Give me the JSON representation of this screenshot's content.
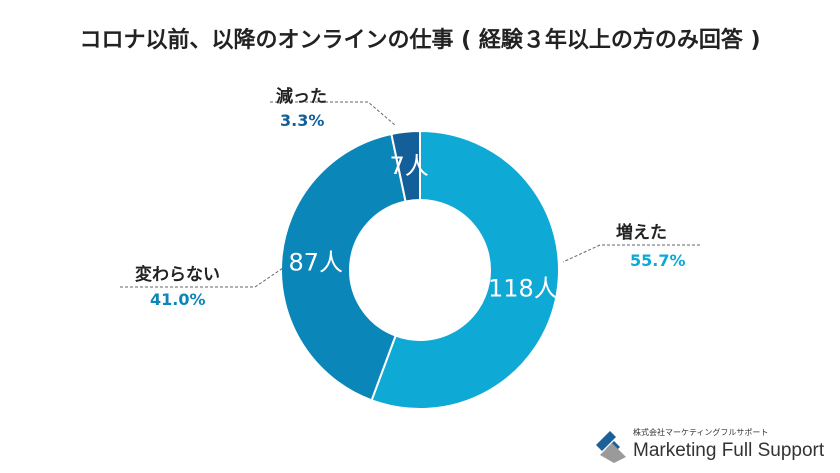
{
  "chart_data": {
    "type": "pie",
    "donut": true,
    "title": "コロナ以前、以降のオンラインの仕事 ( 経験３年以上の方のみ回答 )",
    "slices": [
      {
        "label": "増えた",
        "count": 118,
        "count_label": "118人",
        "percent_label": "55.7%",
        "color": "#0fa9d6",
        "pct_color": "#0fa9d6"
      },
      {
        "label": "変わらない",
        "count": 87,
        "count_label": "87人",
        "percent_label": "41.0%",
        "color": "#0b86b8",
        "pct_color": "#0b86b8"
      },
      {
        "label": "減った",
        "count": 7,
        "count_label": "7人",
        "percent_label": "3.3%",
        "color": "#135f99",
        "pct_color": "#135f99"
      }
    ]
  },
  "logo": {
    "sub": "株式会社マーケティングフルサポート",
    "main": "Marketing Full Support"
  }
}
